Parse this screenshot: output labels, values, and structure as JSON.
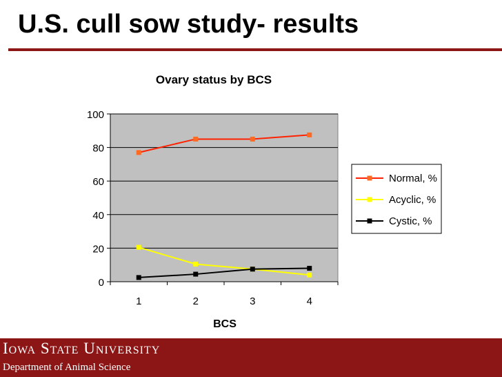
{
  "slide": {
    "title": "U.S. cull sow study- results"
  },
  "footer": {
    "university": "Iowa State University",
    "department": "Department of Animal Science",
    "background_color": "#8c1515"
  },
  "chart_data": {
    "type": "line",
    "title": "Ovary status by BCS",
    "xlabel": "BCS",
    "ylabel": "",
    "x": [
      "1",
      "2",
      "3",
      "4"
    ],
    "ylim": [
      0,
      100
    ],
    "yticks": [
      0,
      20,
      40,
      60,
      80,
      100
    ],
    "grid": true,
    "legend_position": "right",
    "plot_background": "#c0c0c0",
    "series": [
      {
        "name": "Normal, %",
        "values": [
          77,
          85,
          85,
          87.5
        ],
        "color": "#ff2200",
        "marker_color": "#ff6a22"
      },
      {
        "name": "Acyclic, %",
        "values": [
          20.5,
          10.5,
          7.5,
          4
        ],
        "color": "#ffff00",
        "marker_color": "#ffff00"
      },
      {
        "name": "Cystic, %",
        "values": [
          2.5,
          4.5,
          7.5,
          8
        ],
        "color": "#000000",
        "marker_color": "#000000"
      }
    ]
  }
}
